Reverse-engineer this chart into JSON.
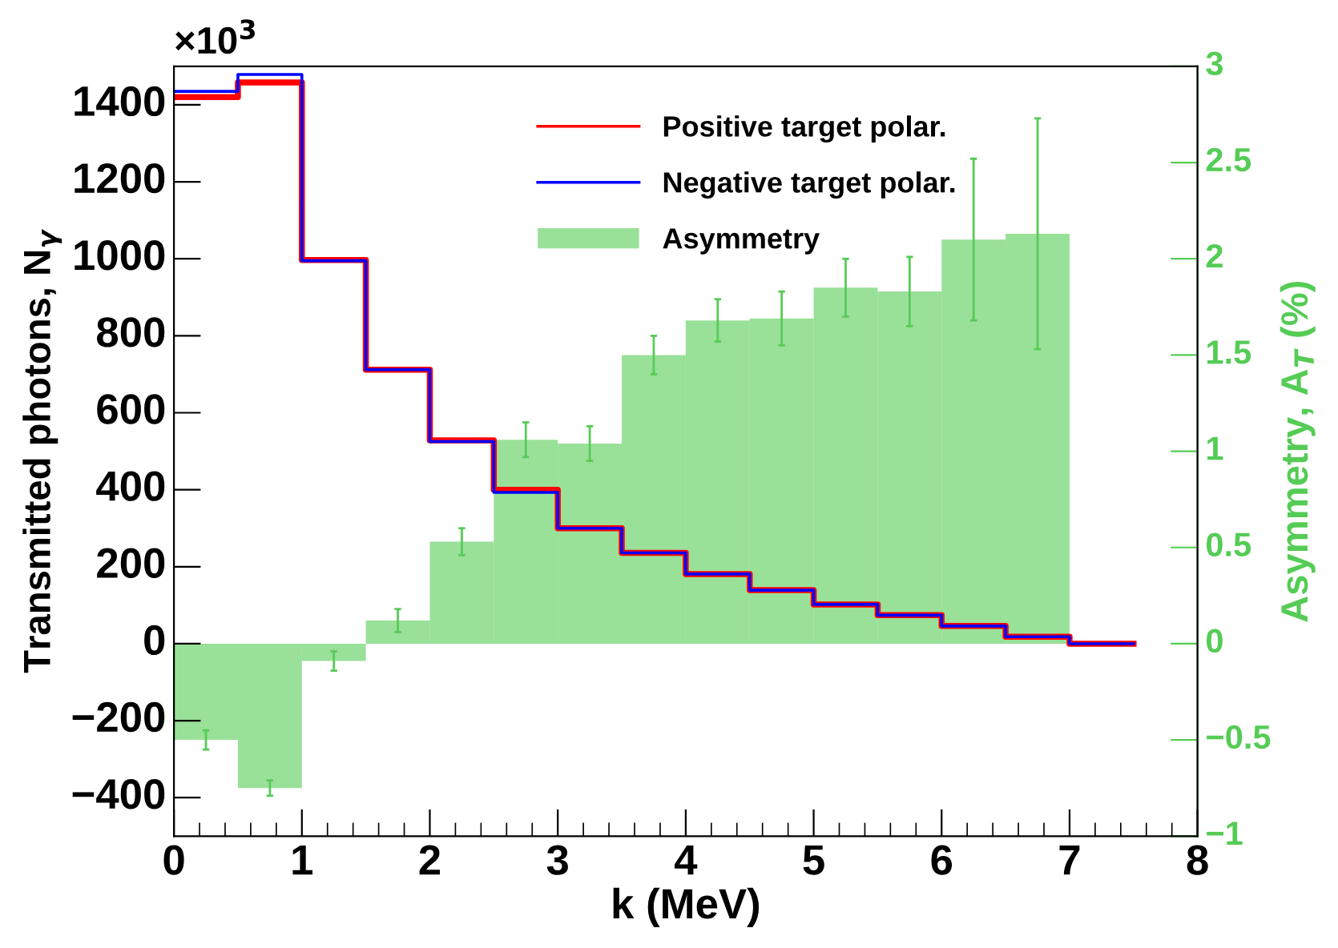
{
  "chart_data": {
    "type": "histogram",
    "xlabel": "k (MeV)",
    "ylabel": "Transmitted photons, N$_{γ}$",
    "y2label": "Asymmetry, A$_{T}$ (%)",
    "bins": [
      0,
      0.5,
      1,
      1.5,
      2,
      2.5,
      3,
      3.5,
      4,
      4.5,
      5,
      5.5,
      6,
      6.5,
      7,
      7.5,
      8
    ],
    "series": [
      {
        "name": "Positive target polar.",
        "type": "step",
        "color": "#ff0000",
        "x": [
          0,
          0.5,
          1,
          1.5,
          2,
          2.5,
          3,
          3.5,
          4,
          4.5,
          5,
          5.5,
          6,
          6.5,
          7,
          7.5
        ],
        "values": [
          1420,
          1458,
          997,
          712,
          528,
          400,
          300,
          236,
          181,
          139,
          102,
          74,
          46,
          18,
          0,
          0
        ]
      },
      {
        "name": "Negative target polar.",
        "type": "step",
        "color": "#0000ff",
        "x": [
          0,
          0.5,
          1,
          1.5,
          2,
          2.5,
          3,
          3.5,
          4,
          4.5,
          5,
          5.5,
          6,
          6.5,
          7,
          7.5
        ],
        "values": [
          1435,
          1479,
          995,
          712,
          525,
          393,
          300,
          236,
          181,
          139,
          102,
          74,
          46,
          18,
          0,
          0
        ]
      },
      {
        "name": "Asymmetry",
        "type": "histogram",
        "axis": "y2",
        "color": "#55cc55",
        "values": [
          -0.5,
          -0.75,
          -0.09,
          0.12,
          0.53,
          1.06,
          1.04,
          1.5,
          1.68,
          1.69,
          1.85,
          1.83,
          2.1,
          2.13,
          0,
          0
        ],
        "errors": [
          0.05,
          0.04,
          0.05,
          0.06,
          0.07,
          0.09,
          0.09,
          0.1,
          0.11,
          0.14,
          0.15,
          0.18,
          0.42,
          0.6,
          null,
          null
        ]
      }
    ],
    "xlim": [
      0,
      8
    ],
    "xticks": [
      0,
      1,
      2,
      3,
      4,
      5,
      6,
      7,
      8
    ],
    "ylim": [
      -500,
      1500
    ],
    "yticks": [
      {
        "value": -400,
        "label": "−400"
      },
      {
        "value": -200,
        "label": "−200"
      },
      0,
      200,
      400,
      600,
      800,
      1000,
      1200,
      1400
    ],
    "y2lim": [
      -1,
      3
    ],
    "y2ticks": [
      {
        "value": -1,
        "label": "−1"
      },
      {
        "value": -0.5,
        "label": "−0.5"
      },
      0,
      0.5,
      1,
      1.5,
      2,
      2.5,
      3
    ],
    "annotations": [
      "×10$^{3}$"
    ],
    "legend": "top",
    "grid": false
  }
}
